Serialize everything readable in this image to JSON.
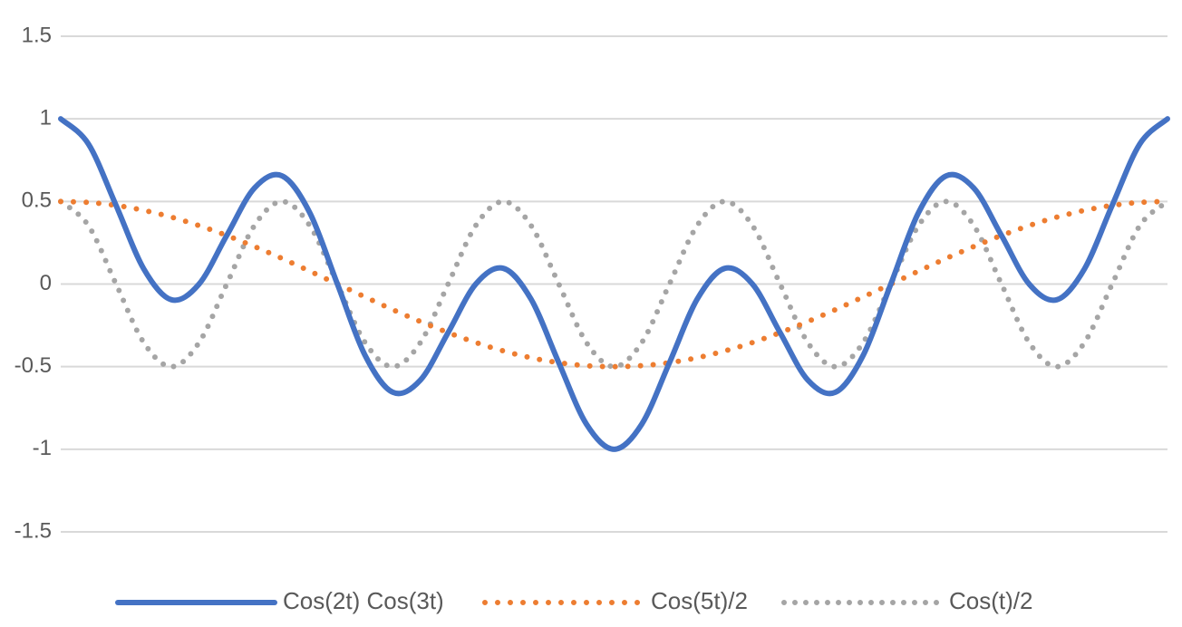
{
  "chart_data": {
    "type": "line",
    "categories": [
      null,
      null,
      null,
      null,
      null,
      null,
      null,
      null,
      null,
      null,
      null,
      null,
      null,
      null,
      null,
      null,
      null,
      null,
      null,
      null,
      null,
      null,
      null,
      null,
      null,
      null,
      null,
      null,
      null,
      null,
      null,
      null,
      null,
      null,
      null,
      null,
      null,
      null,
      null,
      null,
      null
    ],
    "series": [
      {
        "name": "Cos(2t) Cos(3t)",
        "color": "#4472c4",
        "style": "solid",
        "values": [
          1.0,
          0.848,
          0.476,
          0.092,
          -0.095,
          0,
          0.294,
          0.581,
          0.655,
          0.432,
          0,
          -0.432,
          -0.655,
          -0.581,
          -0.294,
          0,
          0.095,
          -0.092,
          -0.476,
          -0.848,
          -1.0,
          -0.848,
          -0.476,
          -0.092,
          0.095,
          0,
          -0.294,
          -0.581,
          -0.655,
          -0.432,
          0,
          0.432,
          0.655,
          0.581,
          0.294,
          0,
          -0.095,
          0.092,
          0.476,
          0.848,
          1.0
        ]
      },
      {
        "name": "Cos(5t)/2",
        "color": "#ed7d31",
        "style": "dotted",
        "values": [
          0.5,
          0.494,
          0.476,
          0.446,
          0.405,
          0.354,
          0.294,
          0.227,
          0.155,
          0.078,
          0,
          -0.078,
          -0.155,
          -0.227,
          -0.294,
          -0.354,
          -0.405,
          -0.446,
          -0.476,
          -0.494,
          -0.5,
          -0.494,
          -0.476,
          -0.446,
          -0.405,
          -0.354,
          -0.294,
          -0.227,
          -0.155,
          -0.078,
          0,
          0.078,
          0.155,
          0.227,
          0.294,
          0.354,
          0.405,
          0.446,
          0.476,
          0.494,
          0.5
        ]
      },
      {
        "name": "Cos(t)/2",
        "color": "#a5a5a5",
        "style": "dotted",
        "values": [
          0.5,
          0.354,
          0,
          -0.354,
          -0.5,
          -0.354,
          0,
          0.354,
          0.5,
          0.354,
          0,
          -0.354,
          -0.5,
          -0.354,
          0,
          0.354,
          0.5,
          0.354,
          0,
          -0.354,
          -0.5,
          -0.354,
          0,
          0.354,
          0.5,
          0.354,
          0,
          -0.354,
          -0.5,
          -0.354,
          0,
          0.354,
          0.5,
          0.354,
          0,
          -0.354,
          -0.5,
          -0.354,
          0,
          0.354,
          0.5
        ]
      }
    ],
    "ylim": [
      -1.5,
      1.5
    ],
    "yticks": [
      1.5,
      1,
      0.5,
      0,
      -0.5,
      -1,
      -1.5
    ],
    "grid": true,
    "legend": "bottom"
  }
}
